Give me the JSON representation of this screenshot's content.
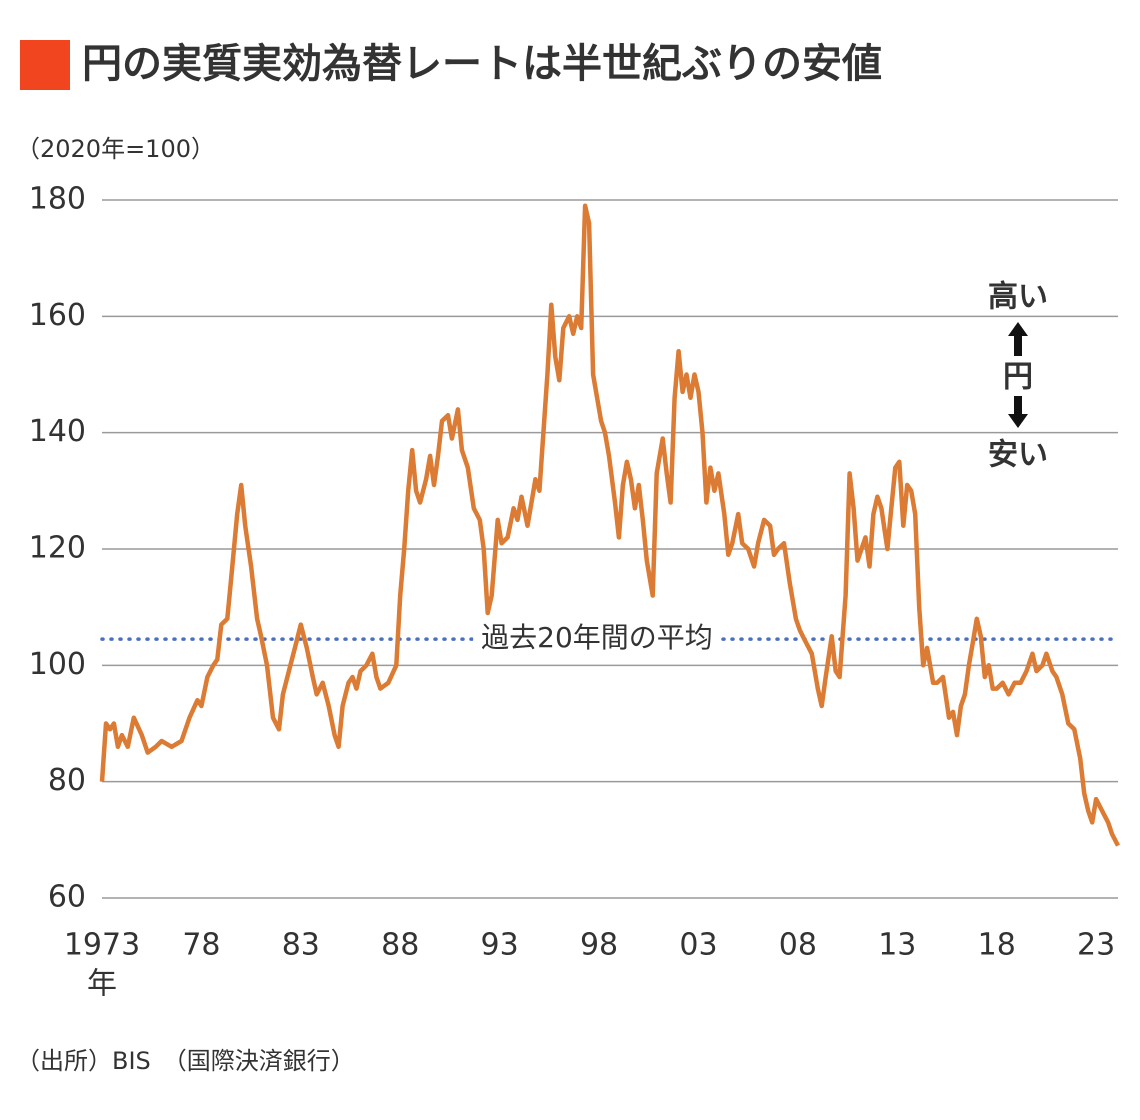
{
  "chart_data": {
    "type": "line",
    "title": "円の実質実効為替レートは半世紀ぶりの安値",
    "y_unit": "（2020年=100）",
    "x_unit": "年",
    "source": "（出所）BIS　（国際決済銀行）",
    "color": "#db7b34",
    "title_marker_color": "#f0451e",
    "grid": true,
    "xlim": [
      1973,
      2024.1
    ],
    "ylim": [
      60,
      180
    ],
    "yticks": [
      60,
      80,
      100,
      120,
      140,
      160,
      180
    ],
    "xticks": [
      1973,
      {
        "value": 1978,
        "label": "78"
      },
      {
        "value": 1983,
        "label": "83"
      },
      {
        "value": 1988,
        "label": "88"
      },
      {
        "value": 1993,
        "label": "93"
      },
      {
        "value": 1998,
        "label": "98"
      },
      {
        "value": 2003,
        "label": "03"
      },
      {
        "value": 2008,
        "label": "08"
      },
      {
        "value": 2013,
        "label": "13"
      },
      {
        "value": 2018,
        "label": "18"
      },
      {
        "value": 2023,
        "label": "23"
      }
    ],
    "reference_line": {
      "value": 104.5,
      "label": "過去20年間の平均",
      "color": "#4a6fbf"
    },
    "annotations": [
      "高い",
      "円",
      "安い"
    ],
    "x": [
      1973.0,
      1973.2,
      1973.4,
      1973.6,
      1973.8,
      1974.0,
      1974.3,
      1974.6,
      1975.0,
      1975.3,
      1975.7,
      1976.0,
      1976.5,
      1977.0,
      1977.4,
      1977.8,
      1978.0,
      1978.3,
      1978.6,
      1978.8,
      1979.0,
      1979.3,
      1979.5,
      1979.8,
      1980.0,
      1980.2,
      1980.5,
      1980.8,
      1981.0,
      1981.3,
      1981.6,
      1981.9,
      1982.1,
      1982.4,
      1982.7,
      1983.0,
      1983.3,
      1983.6,
      1983.8,
      1984.1,
      1984.4,
      1984.7,
      1984.9,
      1985.1,
      1985.4,
      1985.6,
      1985.8,
      1986.0,
      1986.3,
      1986.6,
      1986.8,
      1987.0,
      1987.4,
      1987.8,
      1988.0,
      1988.2,
      1988.4,
      1988.6,
      1988.8,
      1989.0,
      1989.3,
      1989.5,
      1989.7,
      1989.9,
      1990.1,
      1990.4,
      1990.6,
      1990.9,
      1991.1,
      1991.4,
      1991.7,
      1992.0,
      1992.2,
      1992.4,
      1992.6,
      1992.9,
      1993.1,
      1993.4,
      1993.7,
      1993.9,
      1994.1,
      1994.4,
      1994.6,
      1994.8,
      1995.0,
      1995.2,
      1995.4,
      1995.6,
      1995.8,
      1996.0,
      1996.2,
      1996.5,
      1996.7,
      1996.9,
      1997.1,
      1997.3,
      1997.5,
      1997.7,
      1997.9,
      1998.1,
      1998.3,
      1998.5,
      1998.8,
      1999.0,
      1999.2,
      1999.4,
      1999.6,
      1999.8,
      2000.0,
      2000.2,
      2000.4,
      2000.7,
      2000.9,
      2001.2,
      2001.4,
      2001.6,
      2001.8,
      2002.0,
      2002.2,
      2002.4,
      2002.6,
      2002.8,
      2003.0,
      2003.2,
      2003.4,
      2003.6,
      2003.8,
      2004.0,
      2004.3,
      2004.5,
      2004.7,
      2005.0,
      2005.2,
      2005.5,
      2005.8,
      2006.0,
      2006.3,
      2006.6,
      2006.8,
      2007.0,
      2007.3,
      2007.6,
      2007.9,
      2008.1,
      2008.4,
      2008.7,
      2009.0,
      2009.2,
      2009.4,
      2009.7,
      2009.9,
      2010.1,
      2010.4,
      2010.6,
      2010.8,
      2011.0,
      2011.2,
      2011.4,
      2011.6,
      2011.8,
      2012.0,
      2012.2,
      2012.5,
      2012.7,
      2012.9,
      2013.1,
      2013.3,
      2013.5,
      2013.7,
      2013.9,
      2014.1,
      2014.3,
      2014.5,
      2014.8,
      2015.0,
      2015.3,
      2015.6,
      2015.8,
      2016.0,
      2016.2,
      2016.4,
      2016.6,
      2016.8,
      2017.0,
      2017.2,
      2017.4,
      2017.6,
      2017.8,
      2018.0,
      2018.3,
      2018.6,
      2018.9,
      2019.2,
      2019.5,
      2019.8,
      2020.0,
      2020.3,
      2020.5,
      2020.8,
      2021.0,
      2021.3,
      2021.6,
      2021.9,
      2022.2,
      2022.4,
      2022.6,
      2022.8,
      2023.0,
      2023.3,
      2023.6,
      2023.8,
      2024.1
    ],
    "values": [
      80,
      90,
      89,
      90,
      86,
      88,
      86,
      91,
      88,
      85,
      86,
      87,
      86,
      87,
      91,
      94,
      93,
      98,
      100,
      101,
      107,
      108,
      115,
      126,
      131,
      124,
      117,
      108,
      105,
      100,
      91,
      89,
      95,
      99,
      103,
      107,
      103,
      98,
      95,
      97,
      93,
      88,
      86,
      93,
      97,
      98,
      96,
      99,
      100,
      102,
      98,
      96,
      97,
      100,
      112,
      120,
      130,
      137,
      130,
      128,
      132,
      136,
      131,
      136,
      142,
      143,
      139,
      144,
      137,
      134,
      127,
      125,
      120,
      109,
      112,
      125,
      121,
      122,
      127,
      125,
      129,
      124,
      128,
      132,
      130,
      140,
      150,
      162,
      153,
      149,
      158,
      160,
      157,
      160,
      158,
      179,
      176,
      150,
      146,
      142,
      140,
      136,
      128,
      122,
      131,
      135,
      132,
      127,
      131,
      125,
      118,
      112,
      133,
      139,
      133,
      128,
      146,
      154,
      147,
      150,
      146,
      150,
      147,
      140,
      128,
      134,
      130,
      133,
      126,
      119,
      121,
      126,
      121,
      120,
      117,
      121,
      125,
      124,
      119,
      120,
      121,
      114,
      108,
      106,
      104,
      102,
      96,
      93,
      98,
      105,
      99,
      98,
      112,
      133,
      127,
      118,
      120,
      122,
      117,
      126,
      129,
      127,
      120,
      127,
      134,
      135,
      124,
      131,
      130,
      126,
      110,
      100,
      103,
      97,
      97,
      98,
      91,
      92,
      88,
      93,
      95,
      100,
      104,
      108,
      105,
      98,
      100,
      96,
      96,
      97,
      95,
      97,
      97,
      99,
      102,
      99,
      100,
      102,
      99,
      98,
      95,
      90,
      89,
      84,
      78,
      75,
      73,
      77,
      75,
      73,
      71,
      69
    ]
  }
}
